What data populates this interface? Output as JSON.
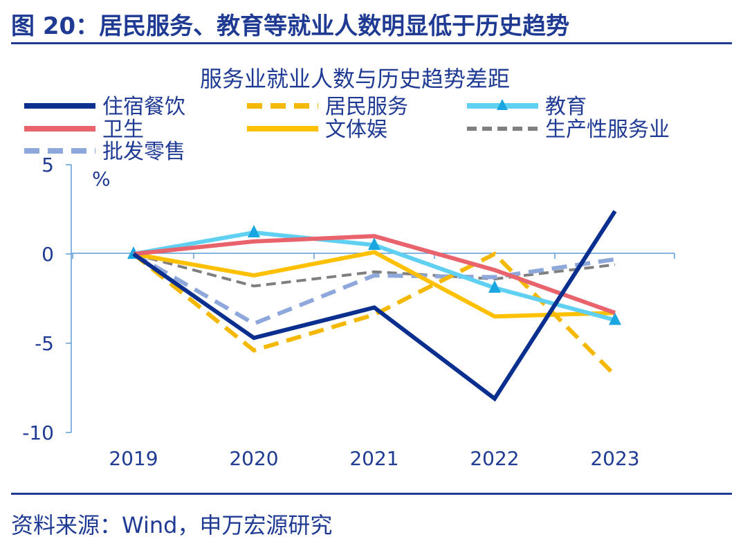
{
  "figure": {
    "title": "图 20：居民服务、教育等就业人数明显低于历史趋势",
    "source": "资料来源：Wind，申万宏源研究"
  },
  "chart_data": {
    "type": "line",
    "title": "服务业就业人数与历史趋势差距",
    "ylabel": "%",
    "xlabel": "",
    "ylim": [
      -10,
      5
    ],
    "yticks": [
      5,
      0,
      -5,
      -10
    ],
    "categories": [
      "2019",
      "2020",
      "2021",
      "2022",
      "2023"
    ],
    "legend_position": "top",
    "grid": false,
    "series": [
      {
        "name": "住宿餐饮",
        "color": "#0a2f8f",
        "style": "solid",
        "marker": "none",
        "values": [
          0,
          -4.7,
          -3.0,
          -8.1,
          2.4
        ]
      },
      {
        "name": "居民服务",
        "color": "#f5b800",
        "style": "dashed",
        "marker": "none",
        "values": [
          0,
          -5.4,
          -3.4,
          0,
          -6.8
        ]
      },
      {
        "name": "教育",
        "color": "#5fd0f2",
        "style": "solid",
        "marker": "triangle",
        "marker_color": "#1aa6e0",
        "values": [
          0,
          1.2,
          0.5,
          -1.9,
          -3.7
        ]
      },
      {
        "name": "卫生",
        "color": "#e8636b",
        "style": "solid",
        "marker": "none",
        "values": [
          0,
          0.7,
          1.0,
          -0.9,
          -3.3
        ]
      },
      {
        "name": "文体娱",
        "color": "#ffc000",
        "style": "solid",
        "marker": "none",
        "values": [
          0,
          -1.2,
          0.1,
          -3.5,
          -3.3
        ]
      },
      {
        "name": "生产性服务业",
        "color": "#7f7f7f",
        "style": "dashed-thin",
        "marker": "none",
        "values": [
          0,
          -1.8,
          -1.0,
          -1.4,
          -0.6
        ]
      },
      {
        "name": "批发零售",
        "color": "#8fa8dc",
        "style": "dashed",
        "marker": "none",
        "values": [
          0,
          -3.9,
          -1.2,
          -1.3,
          -0.3
        ]
      }
    ]
  }
}
